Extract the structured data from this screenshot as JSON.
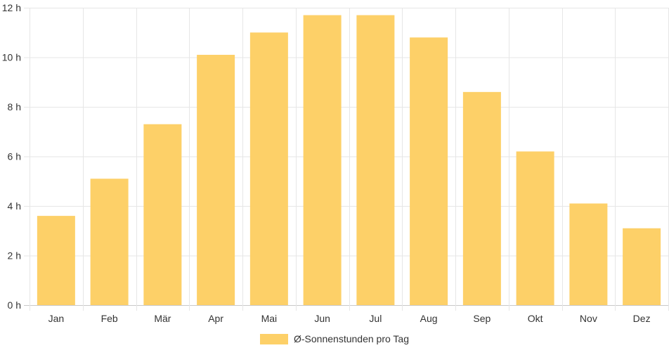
{
  "chart_data": {
    "type": "bar",
    "categories": [
      "Jan",
      "Feb",
      "Mär",
      "Apr",
      "Mai",
      "Jun",
      "Jul",
      "Aug",
      "Sep",
      "Okt",
      "Nov",
      "Dez"
    ],
    "series": [
      {
        "name": "Ø-Sonnenstunden pro Tag",
        "values": [
          3.6,
          5.1,
          7.3,
          10.1,
          11.0,
          11.7,
          11.7,
          10.8,
          8.6,
          6.2,
          4.1,
          3.1
        ],
        "color": "#fdd068"
      }
    ],
    "ylim": [
      0,
      12
    ],
    "yticks": [
      "0 h",
      "2 h",
      "4 h",
      "6 h",
      "8 h",
      "10 h",
      "12 h"
    ],
    "grid": true,
    "legend_position": "bottom"
  },
  "colors": {
    "bar": "#fdd068",
    "grid": "#e6e6e6",
    "text": "#333333"
  }
}
